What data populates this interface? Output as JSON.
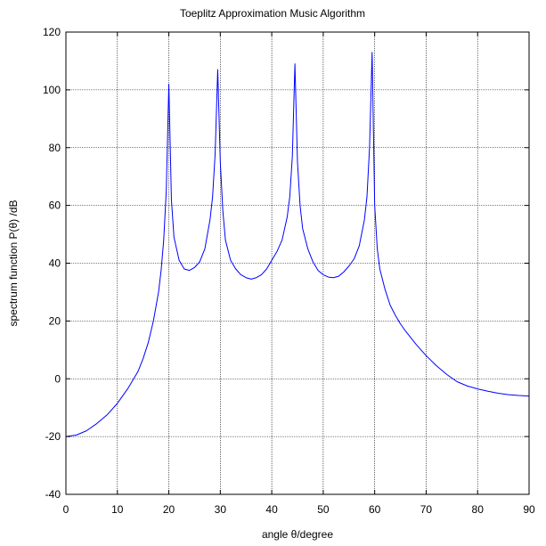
{
  "chart_data": {
    "type": "line",
    "title": "Toeplitz Approximation Music Algorithm",
    "xlabel": "angle θ/degree",
    "ylabel": "spectrum function P(θ) /dB",
    "xlim": [
      0,
      90
    ],
    "ylim": [
      -40,
      120
    ],
    "grid": true,
    "x_ticks": [
      0,
      10,
      20,
      30,
      40,
      50,
      60,
      70,
      80,
      90
    ],
    "y_ticks": [
      -40,
      -20,
      0,
      20,
      40,
      60,
      80,
      100,
      120
    ],
    "x_tick_labels": [
      "0",
      "10",
      "20",
      "30",
      "40",
      "50",
      "60",
      "70",
      "80",
      "90"
    ],
    "y_tick_labels": [
      "-40",
      "-20",
      "0",
      "20",
      "40",
      "60",
      "80",
      "100",
      "120"
    ],
    "series": [
      {
        "color": "#0000ff",
        "x": [
          0,
          2,
          4,
          6,
          8,
          10,
          12,
          14,
          15,
          16,
          17,
          18,
          18.5,
          19,
          19.5,
          20,
          20.5,
          21,
          22,
          23,
          24,
          25,
          26,
          27,
          28,
          28.5,
          29,
          29.5,
          30,
          30.5,
          31,
          32,
          33,
          34,
          35,
          36,
          37,
          38,
          39,
          40,
          41,
          42,
          43,
          43.5,
          44,
          44.5,
          45,
          45.5,
          46,
          47,
          48,
          49,
          50,
          51,
          52,
          53,
          54,
          55,
          56,
          57,
          58,
          58.5,
          59,
          59.5,
          60,
          60.5,
          61,
          62,
          63,
          64,
          65,
          66,
          68,
          70,
          72,
          74,
          76,
          78,
          80,
          82,
          84,
          86,
          88,
          90
        ],
        "y": [
          -20,
          -19.5,
          -18,
          -15.5,
          -12.5,
          -8.5,
          -3.5,
          2.5,
          7,
          12.5,
          20,
          30,
          37.5,
          48,
          65,
          102,
          62,
          49,
          41,
          38,
          37.5,
          38.5,
          40.5,
          45,
          55,
          63,
          78,
          107,
          75,
          58,
          48,
          41,
          38,
          36,
          35,
          34.5,
          35,
          36,
          38,
          41,
          44,
          48,
          56,
          63,
          77,
          109,
          75,
          60,
          52,
          45,
          40.5,
          37.5,
          36,
          35.2,
          35,
          35.5,
          37,
          39,
          41.5,
          46,
          55,
          63,
          80,
          113,
          60,
          45,
          38,
          31,
          25.5,
          22,
          19,
          16.5,
          12,
          8,
          4.5,
          1.5,
          -1,
          -2.5,
          -3.5,
          -4.3,
          -5,
          -5.5,
          -5.8,
          -6
        ]
      }
    ]
  }
}
